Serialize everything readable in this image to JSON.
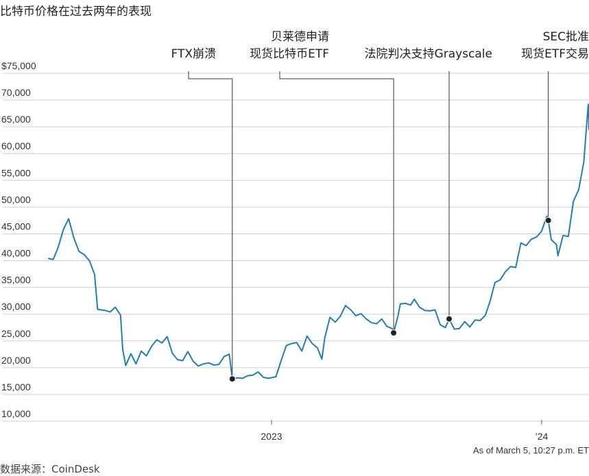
{
  "header": {
    "title": "比特币价格在过去两年的表现"
  },
  "footer": {
    "source": "数据来源：CoinDesk",
    "as_of": "As of March 5, 10:27 p.m. ET"
  },
  "colors": {
    "line": "#1f7fb3",
    "grid": "#cfcfcf",
    "marker": "#222222",
    "leader": "#333333"
  },
  "chart_data": {
    "type": "line",
    "title": "比特币价格在过去两年的表现",
    "xlabel": "",
    "ylabel": "",
    "ylim": [
      10000,
      75000
    ],
    "xlim": [
      "2022-03-05",
      "2024-03-05"
    ],
    "y_ticks": [
      {
        "value": 75000,
        "label": "$75,000"
      },
      {
        "value": 70000,
        "label": "70,000"
      },
      {
        "value": 65000,
        "label": "65,000"
      },
      {
        "value": 60000,
        "label": "60,000"
      },
      {
        "value": 55000,
        "label": "55,000"
      },
      {
        "value": 50000,
        "label": "50,000"
      },
      {
        "value": 45000,
        "label": "45,000"
      },
      {
        "value": 40000,
        "label": "40,000"
      },
      {
        "value": 35000,
        "label": "35,000"
      },
      {
        "value": 30000,
        "label": "30,000"
      },
      {
        "value": 25000,
        "label": "25,000"
      },
      {
        "value": 20000,
        "label": "20,000"
      },
      {
        "value": 15000,
        "label": "15,000"
      },
      {
        "value": 10000,
        "label": "10,000"
      }
    ],
    "x_ticks": [
      {
        "date": "2023-01-01",
        "label": "2023"
      },
      {
        "date": "2024-01-01",
        "label": "’24"
      }
    ],
    "grid": "horizontal",
    "series": [
      {
        "points": [
          [
            "2022-03-05",
            39000
          ],
          [
            "2022-03-12",
            38800
          ],
          [
            "2022-03-19",
            41200
          ],
          [
            "2022-03-26",
            44500
          ],
          [
            "2022-04-02",
            46400
          ],
          [
            "2022-04-09",
            42800
          ],
          [
            "2022-04-16",
            40300
          ],
          [
            "2022-04-23",
            39700
          ],
          [
            "2022-04-30",
            38600
          ],
          [
            "2022-05-07",
            36000
          ],
          [
            "2022-05-11",
            29500
          ],
          [
            "2022-05-21",
            29300
          ],
          [
            "2022-05-28",
            29000
          ],
          [
            "2022-06-04",
            29900
          ],
          [
            "2022-06-11",
            28400
          ],
          [
            "2022-06-14",
            22000
          ],
          [
            "2022-06-18",
            19000
          ],
          [
            "2022-06-25",
            21200
          ],
          [
            "2022-07-02",
            19300
          ],
          [
            "2022-07-09",
            21700
          ],
          [
            "2022-07-16",
            20800
          ],
          [
            "2022-07-23",
            22600
          ],
          [
            "2022-07-30",
            23800
          ],
          [
            "2022-08-06",
            23200
          ],
          [
            "2022-08-13",
            24400
          ],
          [
            "2022-08-20",
            21300
          ],
          [
            "2022-08-27",
            20100
          ],
          [
            "2022-09-03",
            19900
          ],
          [
            "2022-09-10",
            21600
          ],
          [
            "2022-09-17",
            19800
          ],
          [
            "2022-09-24",
            18900
          ],
          [
            "2022-10-01",
            19300
          ],
          [
            "2022-10-08",
            19500
          ],
          [
            "2022-10-15",
            19100
          ],
          [
            "2022-10-22",
            19200
          ],
          [
            "2022-10-29",
            20700
          ],
          [
            "2022-11-05",
            21100
          ],
          [
            "2022-11-09",
            16500
          ],
          [
            "2022-11-16",
            16700
          ],
          [
            "2022-11-23",
            16600
          ],
          [
            "2022-11-30",
            17100
          ],
          [
            "2022-12-07",
            17200
          ],
          [
            "2022-12-14",
            17800
          ],
          [
            "2022-12-21",
            16800
          ],
          [
            "2022-12-28",
            16600
          ],
          [
            "2023-01-07",
            16900
          ],
          [
            "2023-01-14",
            19900
          ],
          [
            "2023-01-21",
            22700
          ],
          [
            "2023-01-28",
            23100
          ],
          [
            "2023-02-04",
            23300
          ],
          [
            "2023-02-11",
            21700
          ],
          [
            "2023-02-18",
            24500
          ],
          [
            "2023-02-25",
            23100
          ],
          [
            "2023-03-04",
            22300
          ],
          [
            "2023-03-10",
            20200
          ],
          [
            "2023-03-14",
            24200
          ],
          [
            "2023-03-21",
            28000
          ],
          [
            "2023-03-28",
            27100
          ],
          [
            "2023-04-04",
            28200
          ],
          [
            "2023-04-11",
            30200
          ],
          [
            "2023-04-18",
            29400
          ],
          [
            "2023-04-25",
            28300
          ],
          [
            "2023-05-02",
            28700
          ],
          [
            "2023-05-09",
            27700
          ],
          [
            "2023-05-16",
            27000
          ],
          [
            "2023-05-23",
            26800
          ],
          [
            "2023-05-30",
            27700
          ],
          [
            "2023-06-06",
            26300
          ],
          [
            "2023-06-13",
            25900
          ],
          [
            "2023-06-15",
            25100
          ],
          [
            "2023-06-21",
            28300
          ],
          [
            "2023-06-24",
            30500
          ],
          [
            "2023-07-01",
            30600
          ],
          [
            "2023-07-08",
            30300
          ],
          [
            "2023-07-13",
            31400
          ],
          [
            "2023-07-20",
            29900
          ],
          [
            "2023-07-27",
            29300
          ],
          [
            "2023-08-03",
            29200
          ],
          [
            "2023-08-10",
            29400
          ],
          [
            "2023-08-17",
            26600
          ],
          [
            "2023-08-24",
            26100
          ],
          [
            "2023-08-29",
            27700
          ],
          [
            "2023-09-05",
            25800
          ],
          [
            "2023-09-12",
            25900
          ],
          [
            "2023-09-19",
            27200
          ],
          [
            "2023-09-26",
            26200
          ],
          [
            "2023-10-03",
            27500
          ],
          [
            "2023-10-10",
            27400
          ],
          [
            "2023-10-17",
            28400
          ],
          [
            "2023-10-23",
            30900
          ],
          [
            "2023-10-30",
            34500
          ],
          [
            "2023-11-06",
            35000
          ],
          [
            "2023-11-13",
            36500
          ],
          [
            "2023-11-20",
            37500
          ],
          [
            "2023-11-27",
            37300
          ],
          [
            "2023-12-04",
            41900
          ],
          [
            "2023-12-11",
            41400
          ],
          [
            "2023-12-18",
            42600
          ],
          [
            "2023-12-25",
            43000
          ],
          [
            "2024-01-01",
            44100
          ],
          [
            "2024-01-08",
            46900
          ],
          [
            "2024-01-10",
            46100
          ],
          [
            "2024-01-14",
            42500
          ],
          [
            "2024-01-21",
            41600
          ],
          [
            "2024-01-23",
            39500
          ],
          [
            "2024-01-30",
            43300
          ],
          [
            "2024-02-06",
            43100
          ],
          [
            "2024-02-13",
            49700
          ],
          [
            "2024-02-20",
            51800
          ],
          [
            "2024-02-27",
            57000
          ],
          [
            "2024-03-01",
            62500
          ],
          [
            "2024-03-04",
            67800
          ],
          [
            "2024-03-05",
            63000
          ]
        ]
      }
    ],
    "annotations": [
      {
        "lines": [
          "FTX崩溃"
        ],
        "date": "2022-11-09",
        "value": 16500
      },
      {
        "lines": [
          "贝莱德申请",
          "现货比特币ETF"
        ],
        "date": "2023-06-15",
        "value": 25100
      },
      {
        "lines": [
          "法院判决支持Grayscale"
        ],
        "date": "2023-08-29",
        "value": 27700
      },
      {
        "lines": [
          "SEC批准",
          "现货ETF交易"
        ],
        "date": "2024-01-10",
        "value": 46100
      }
    ]
  }
}
